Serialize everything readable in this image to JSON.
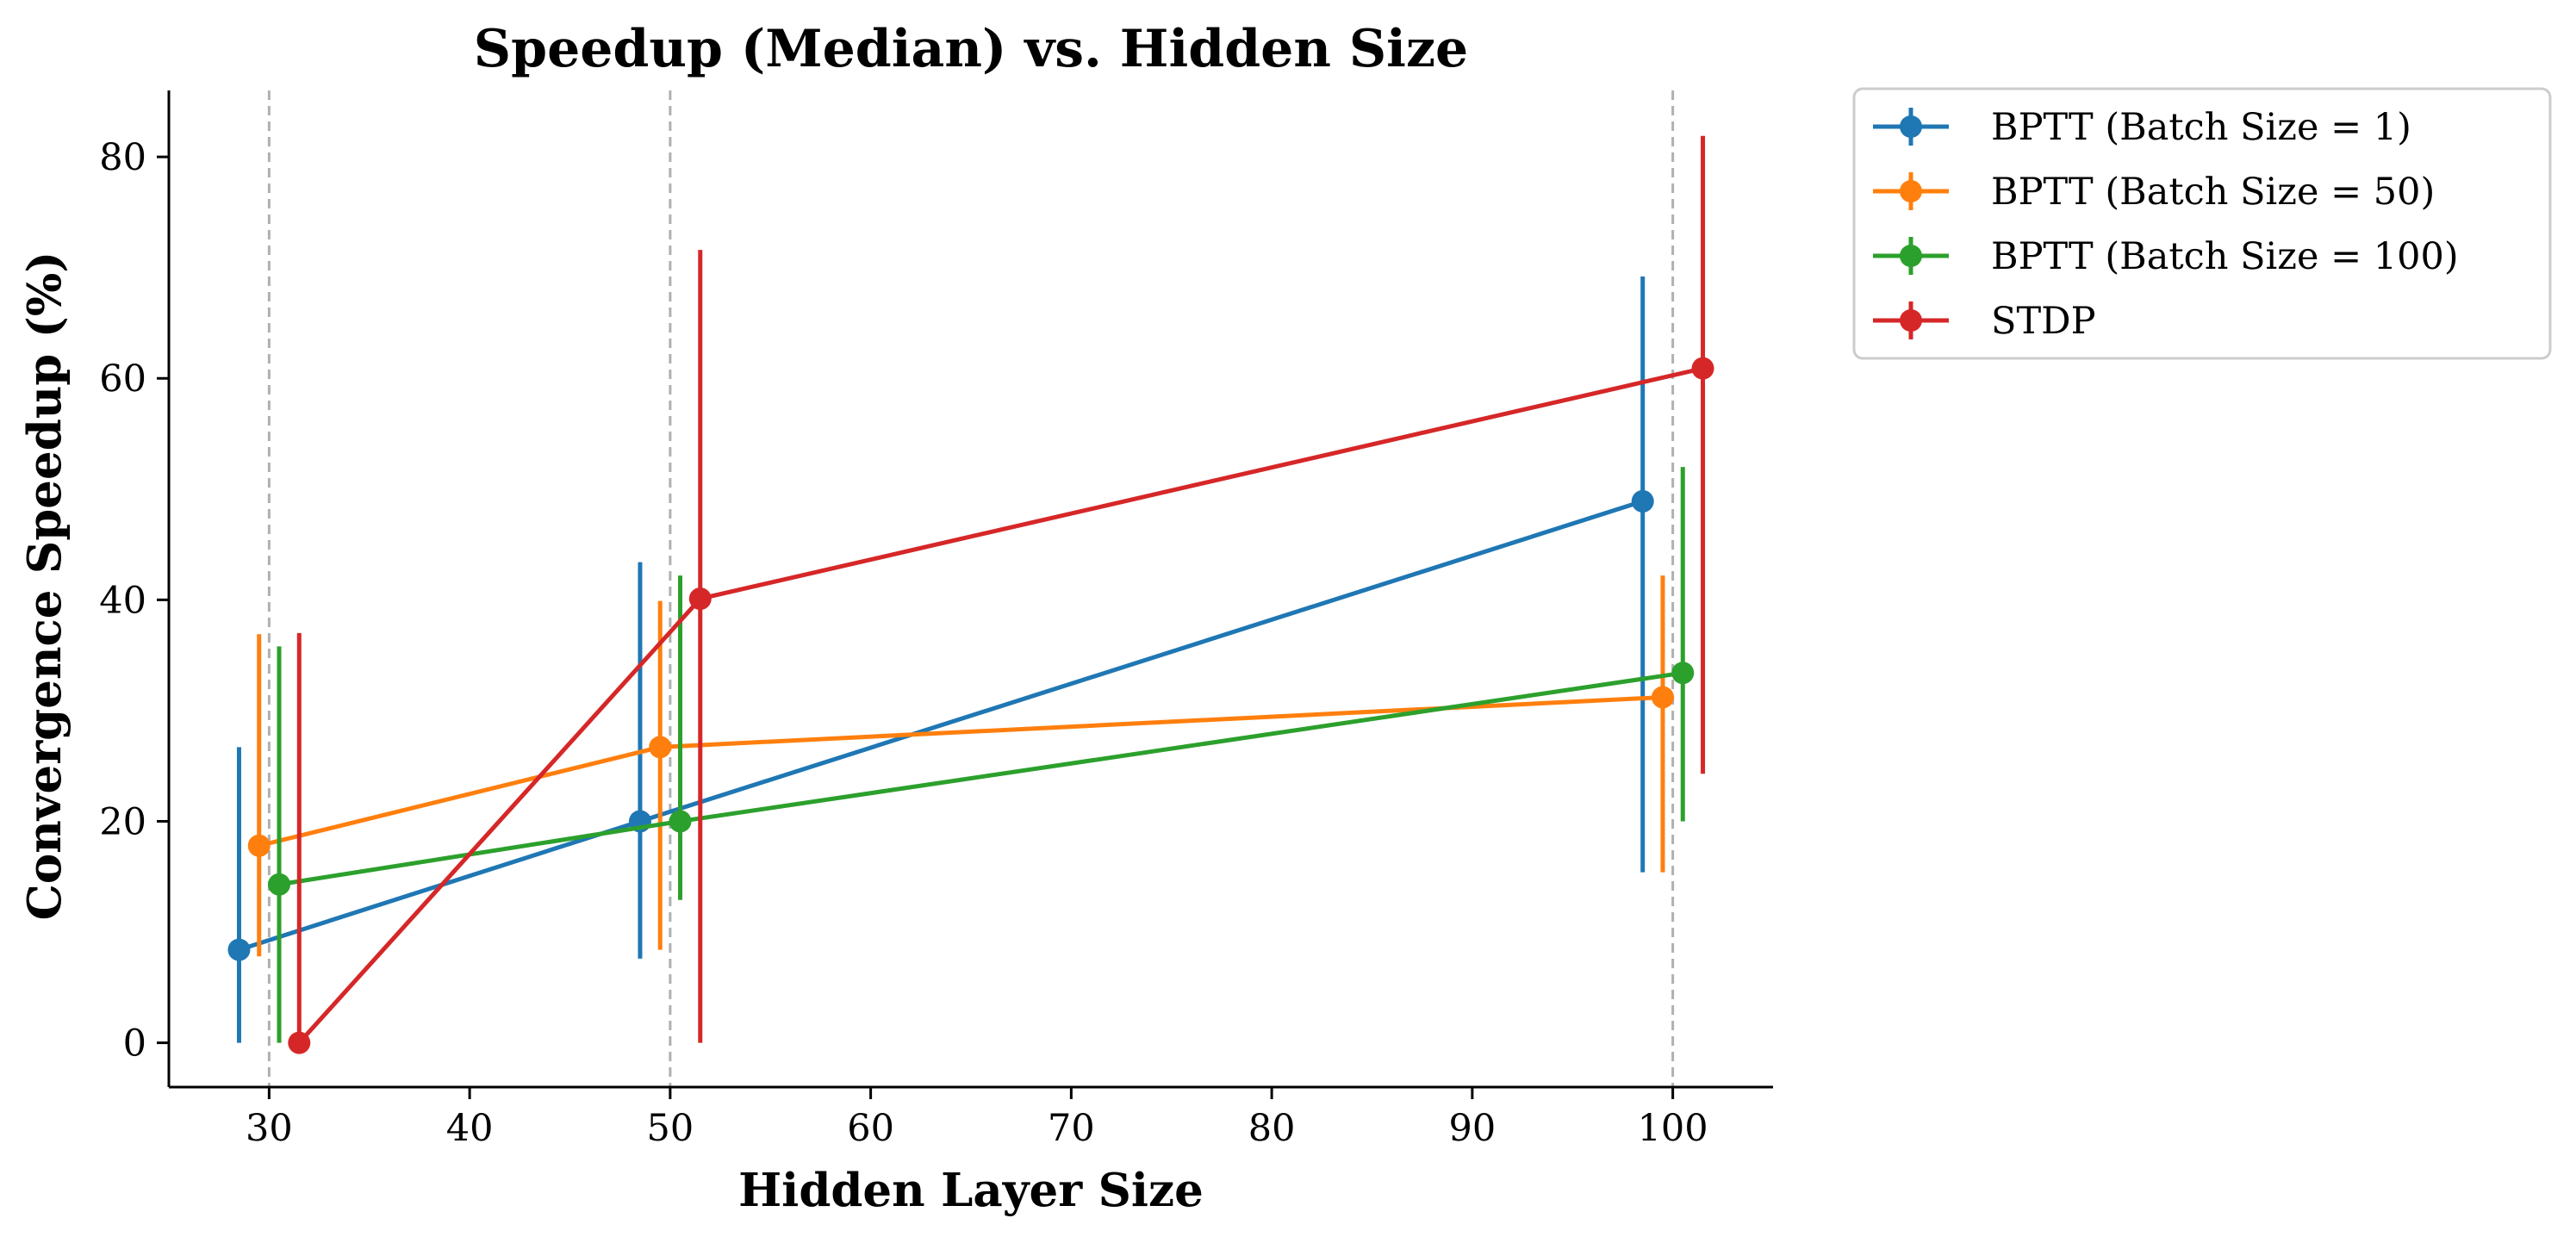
{
  "chart_data": {
    "type": "line",
    "title": "Speedup (Median) vs. Hidden Size",
    "xlabel": "Hidden Layer Size",
    "ylabel": "Convergence Speedup (%)",
    "xlim": [
      25,
      105
    ],
    "ylim": [
      -4,
      86
    ],
    "xticks": [
      30,
      40,
      50,
      60,
      70,
      80,
      90,
      100
    ],
    "yticks": [
      0,
      20,
      40,
      60,
      80
    ],
    "reference_lines_x": [
      30,
      50,
      100
    ],
    "grid": false,
    "error_bars": true,
    "legend_position": "outside top-right",
    "series": [
      {
        "name": "BPTT (Batch Size = 1)",
        "color": "#1f77b4",
        "x": [
          28.5,
          48.5,
          98.5
        ],
        "y": [
          8.4,
          20.0,
          48.9
        ],
        "y_low": [
          0.0,
          7.6,
          15.4
        ],
        "y_high": [
          26.7,
          43.4,
          69.2
        ]
      },
      {
        "name": "BPTT (Batch Size = 50)",
        "color": "#ff7f0e",
        "x": [
          29.5,
          49.5,
          99.5
        ],
        "y": [
          17.8,
          26.7,
          31.2
        ],
        "y_low": [
          7.8,
          8.4,
          15.4
        ],
        "y_high": [
          36.9,
          39.9,
          42.2
        ]
      },
      {
        "name": "BPTT (Batch Size = 100)",
        "color": "#2ca02c",
        "x": [
          30.5,
          50.5,
          100.5
        ],
        "y": [
          14.3,
          20.0,
          33.4
        ],
        "y_low": [
          0.0,
          12.9,
          20.0
        ],
        "y_high": [
          35.8,
          42.2,
          52.0
        ]
      },
      {
        "name": "STDP",
        "color": "#d62728",
        "x": [
          31.5,
          51.5,
          101.5
        ],
        "y": [
          0.0,
          40.1,
          60.9
        ],
        "y_low": [
          0.0,
          0.0,
          24.3
        ],
        "y_high": [
          37.0,
          71.6,
          81.9
        ]
      }
    ]
  }
}
